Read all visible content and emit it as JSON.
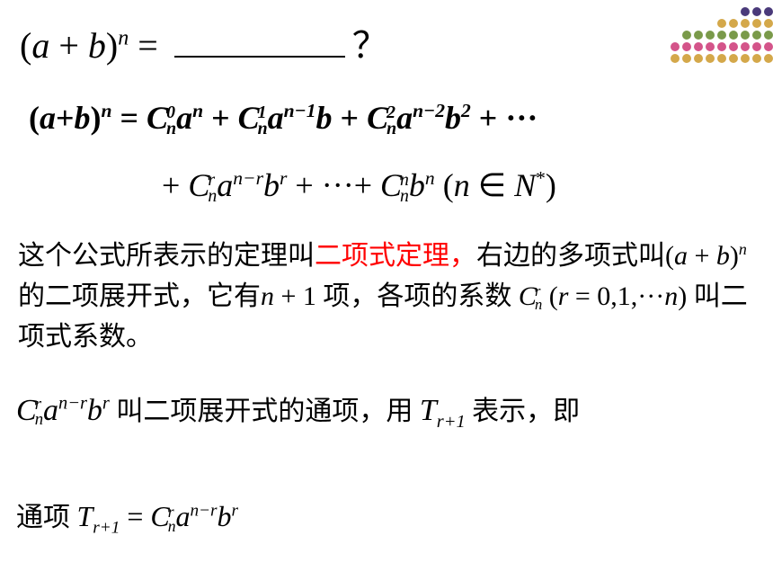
{
  "decoration": {
    "rows": [
      {
        "count": 3,
        "color": "#4a3a7a"
      },
      {
        "count": 5,
        "color": "#d4a84a"
      },
      {
        "count": 8,
        "color": "#7a9a4a"
      },
      {
        "count": 9,
        "color": "#d4548a"
      },
      {
        "count": 9,
        "color": "#d4a84a"
      }
    ],
    "dot_size": 10,
    "gap": 3
  },
  "line1": {
    "lhs_open": "(",
    "a": "a",
    "plus": " + ",
    "b": "b",
    "lhs_close": ")",
    "exp": "n",
    "eq": " = ",
    "question": "？"
  },
  "line2": {
    "lhs": "(a+b)",
    "exp_n": "n",
    "eq": " = ",
    "t1_C": "C",
    "t1_sup": "0",
    "t1_sub": "n",
    "t1_a": "a",
    "t1_aexp": "n",
    "plus1": " + ",
    "t2_C": "C",
    "t2_sup": "1",
    "t2_sub": "n",
    "t2_a": "a",
    "t2_aexp": "n−1",
    "t2_b": "b",
    "plus2": " + ",
    "t3_C": "C",
    "t3_sup": "2",
    "t3_sub": "n",
    "t3_a": "a",
    "t3_aexp": "n−2",
    "t3_b": "b",
    "t3_bexp": "2",
    "plus3": " + ",
    "dots": "···"
  },
  "line3": {
    "plus1": "+ ",
    "t4_C": "C",
    "t4_sup": "r",
    "t4_sub": "n",
    "t4_a": "a",
    "t4_aexp": "n−r",
    "t4_b": "b",
    "t4_bexp": "r",
    "plus2": " + ",
    "dots": "···",
    "plus3": "+ ",
    "t5_C": "C",
    "t5_sup": "n",
    "t5_sub": "n",
    "t5_b": "b",
    "t5_bexp": "n",
    "cond_open": "   (",
    "cond_n": "n",
    "cond_in": " ∈ ",
    "cond_N": "N",
    "cond_star": "*",
    "cond_close": ")"
  },
  "para1": {
    "t1": "这个公式所表示的定理叫",
    "red": "二项式定理，",
    "t2": "右边的多项式叫",
    "expr_open": "(",
    "expr_a": "a",
    "expr_plus": " + ",
    "expr_b": "b",
    "expr_close": ")",
    "expr_exp": "n",
    "t3": " 的二项展开式，它有",
    "nplus1_n": "n",
    "nplus1_plus": " + ",
    "nplus1_one": "1",
    "t4": " 项，各项的系数 ",
    "C": "C",
    "C_sup": "r",
    "C_sub": "n",
    "range_open": " (",
    "range_r": "r",
    "range_eq": " = ",
    "range_vals": "0,1,",
    "range_dots": "···",
    "range_n": "n",
    "range_close": ")",
    "t5": " 叫二项式系数。"
  },
  "para2": {
    "C": "C",
    "C_sup": "r",
    "C_sub": "n",
    "a": "a",
    "a_exp": "n−r",
    "b": "b",
    "b_exp": "r",
    "t1": " 叫二项展开式的通项，用 ",
    "T": "T",
    "T_sub": "r+1",
    "t2": " 表示，即"
  },
  "para3": {
    "label": "通项 ",
    "T": "T",
    "T_sub": "r+1",
    "eq": " = ",
    "C": "C",
    "C_sup": "r",
    "C_sub": "n",
    "a": "a",
    "a_exp": "n−r",
    "b": "b",
    "b_exp": "r"
  }
}
